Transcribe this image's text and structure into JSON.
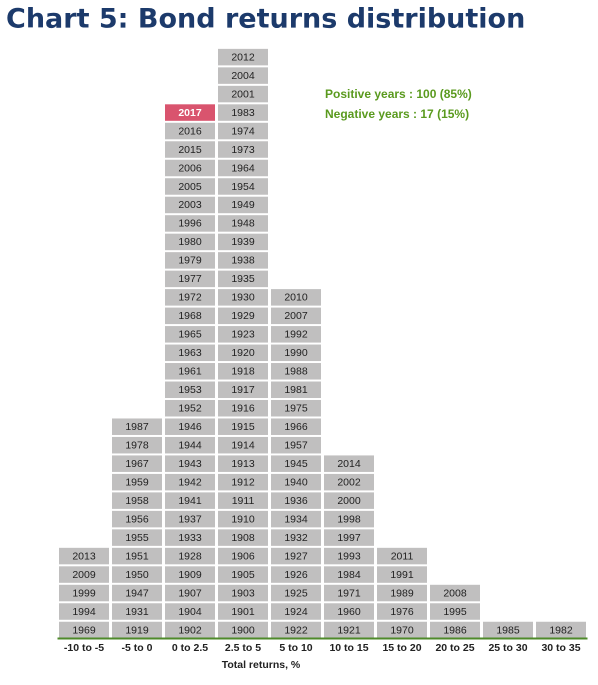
{
  "chart_data": {
    "type": "year-stack",
    "title": "Chart 5: Bond returns distribution",
    "x_label": "Total returns, %",
    "annotations": [
      "Positive years : 100 (85%)",
      "Negative years : 17 (15%)"
    ],
    "box_color": "#c0bfbf",
    "highlight": "2017",
    "highlight_color": "#d9546e",
    "baseline_color": "#4e8a2a",
    "columns": [
      {
        "label": "-10 to -5",
        "years": [
          "1969",
          "1994",
          "1999",
          "2009",
          "2013"
        ]
      },
      {
        "label": "-5 to 0",
        "years": [
          "1919",
          "1931",
          "1947",
          "1950",
          "1951",
          "1955",
          "1956",
          "1958",
          "1959",
          "1967",
          "1978",
          "1987"
        ]
      },
      {
        "label": "0 to 2.5",
        "years": [
          "1902",
          "1904",
          "1907",
          "1909",
          "1928",
          "1933",
          "1937",
          "1941",
          "1942",
          "1943",
          "1944",
          "1946",
          "1952",
          "1953",
          "1961",
          "1963",
          "1965",
          "1968",
          "1972",
          "1977",
          "1979",
          "1980",
          "1996",
          "2003",
          "2005",
          "2006",
          "2015",
          "2016",
          "2017"
        ]
      },
      {
        "label": "2.5 to 5",
        "years": [
          "1900",
          "1901",
          "1903",
          "1905",
          "1906",
          "1908",
          "1910",
          "1911",
          "1912",
          "1913",
          "1914",
          "1915",
          "1916",
          "1917",
          "1918",
          "1920",
          "1923",
          "1929",
          "1930",
          "1935",
          "1938",
          "1939",
          "1948",
          "1949",
          "1954",
          "1964",
          "1973",
          "1974",
          "1983",
          "2001",
          "2004",
          "2012"
        ]
      },
      {
        "label": "5 to 10",
        "years": [
          "1922",
          "1924",
          "1925",
          "1926",
          "1927",
          "1932",
          "1934",
          "1936",
          "1940",
          "1945",
          "1957",
          "1966",
          "1975",
          "1981",
          "1988",
          "1990",
          "1992",
          "2007",
          "2010"
        ]
      },
      {
        "label": "10 to 15",
        "years": [
          "1921",
          "1960",
          "1971",
          "1984",
          "1993",
          "1997",
          "1998",
          "2000",
          "2002",
          "2014"
        ]
      },
      {
        "label": "15 to 20",
        "years": [
          "1970",
          "1976",
          "1989",
          "1991",
          "2011"
        ]
      },
      {
        "label": "20 to 25",
        "years": [
          "1986",
          "1995",
          "2008"
        ]
      },
      {
        "label": "25 to 30",
        "years": [
          "1985"
        ]
      },
      {
        "label": "30 to 35",
        "years": [
          "1982"
        ]
      }
    ]
  }
}
